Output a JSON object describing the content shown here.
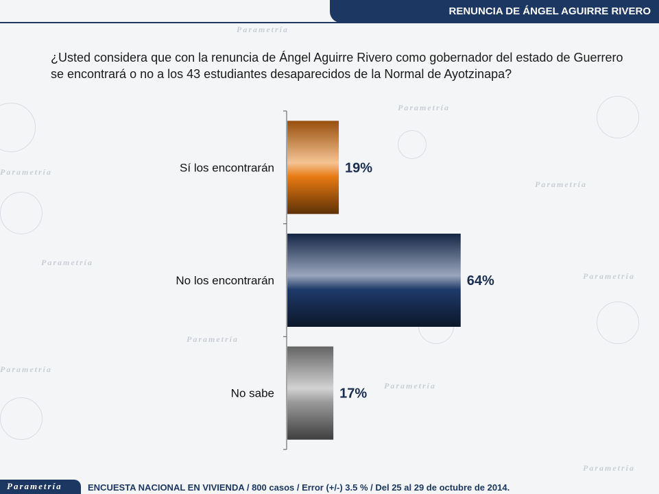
{
  "header": {
    "title": "RENUNCIA DE ÁNGEL AGUIRRE RIVERO"
  },
  "question": "¿Usted considera que con la renuncia de Ángel Aguirre Rivero como gobernador del estado de Guerrero se encontrará o no a los 43 estudiantes desaparecidos de la Normal de Ayotzinapa?",
  "watermark": {
    "text": "Parametría"
  },
  "chart_data": {
    "type": "bar",
    "orientation": "horizontal",
    "categories": [
      "Sí los encontrarán",
      "No los encontrarán",
      "No sabe"
    ],
    "values": [
      19,
      64,
      17
    ],
    "value_labels": [
      "19%",
      "64%",
      "17%"
    ],
    "colors": [
      "#e87a12",
      "#1e3a6a",
      "#9a9a9a"
    ],
    "xlim": [
      0,
      100
    ],
    "grid": false,
    "legend": "none"
  },
  "footer": {
    "logo_text": "Parametría",
    "note": "ENCUESTA NACIONAL EN VIVIENDA / 800 casos / Error (+/-) 3.5 % / Del 25 al 29 de octubre de 2014."
  }
}
